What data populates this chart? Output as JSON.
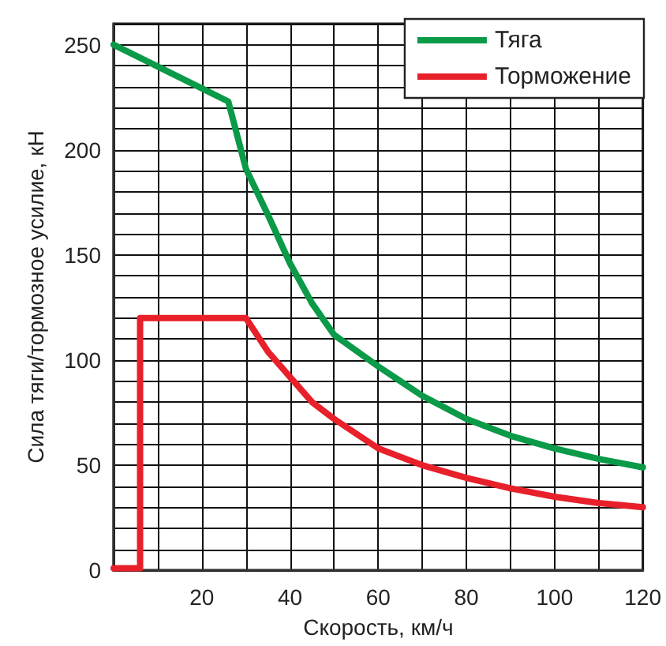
{
  "chart_data": {
    "type": "line",
    "xlabel": "Скорость, км/ч",
    "ylabel": "Сила тяги/тормозное усилие, кН",
    "xlim": [
      0,
      120
    ],
    "ylim": [
      0,
      260
    ],
    "xticks": [
      {
        "value": 0,
        "label": null
      },
      {
        "value": 10,
        "label": null
      },
      20,
      {
        "value": 30,
        "label": null
      },
      40,
      {
        "value": 50,
        "label": null
      },
      60,
      {
        "value": 70,
        "label": null
      },
      80,
      {
        "value": 90,
        "label": null
      },
      100,
      {
        "value": 110,
        "label": null
      },
      120
    ],
    "yticks": [
      0,
      {
        "value": 10,
        "label": null
      },
      {
        "value": 20,
        "label": null
      },
      {
        "value": 30,
        "label": null
      },
      {
        "value": 40,
        "label": null
      },
      50,
      {
        "value": 60,
        "label": null
      },
      {
        "value": 70,
        "label": null
      },
      {
        "value": 80,
        "label": null
      },
      {
        "value": 90,
        "label": null
      },
      100,
      {
        "value": 110,
        "label": null
      },
      {
        "value": 120,
        "label": null
      },
      {
        "value": 130,
        "label": null
      },
      {
        "value": 140,
        "label": null
      },
      150,
      {
        "value": 160,
        "label": null
      },
      {
        "value": 170,
        "label": null
      },
      {
        "value": 180,
        "label": null
      },
      {
        "value": 190,
        "label": null
      },
      200,
      {
        "value": 210,
        "label": null
      },
      {
        "value": 220,
        "label": null
      },
      {
        "value": 230,
        "label": null
      },
      {
        "value": 240,
        "label": null
      },
      250,
      {
        "value": 260,
        "label": null
      }
    ],
    "grid": true,
    "legend": "top right",
    "marker": "none",
    "line_style": "solid",
    "series": [
      {
        "name": "Тяга",
        "color": "#0a9a48",
        "x": [
          0,
          26,
          30,
          35,
          40,
          45,
          50,
          60,
          70,
          80,
          90,
          100,
          110,
          120
        ],
        "values": [
          250,
          223,
          191,
          169,
          146,
          127,
          112,
          97,
          83,
          72,
          64,
          58,
          53,
          49
        ]
      },
      {
        "name": "Торможение",
        "color": "#e8202a",
        "x": [
          0,
          6,
          6,
          30,
          35,
          40,
          45,
          50,
          60,
          70,
          80,
          90,
          100,
          110,
          120
        ],
        "values": [
          1,
          1,
          120,
          120,
          104,
          92,
          80,
          72,
          58,
          50,
          44,
          39,
          35,
          32,
          30
        ]
      }
    ]
  }
}
